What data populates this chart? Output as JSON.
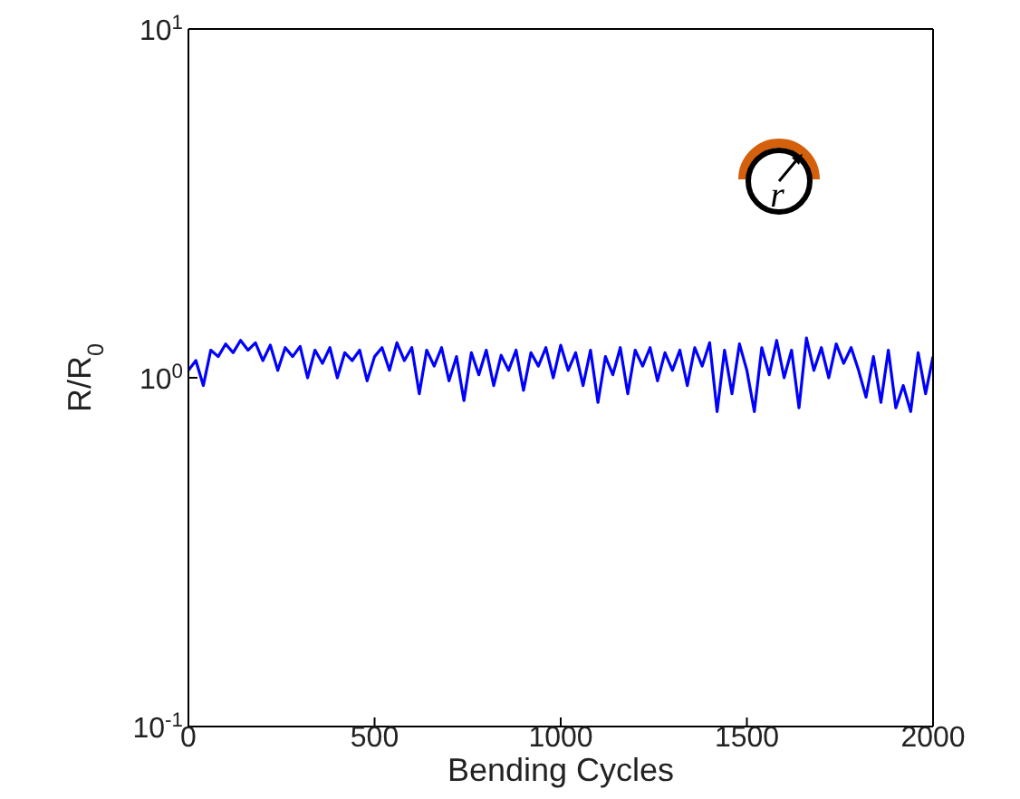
{
  "chart_data": {
    "type": "line",
    "xlabel": "Bending Cycles",
    "ylabel": "R/R$_{0}$",
    "log": "y",
    "xlim": [
      0,
      2000
    ],
    "xticks": [
      0,
      500,
      1000,
      1500,
      2000
    ],
    "ylim": [
      0.1,
      10
    ],
    "yticks": [
      {
        "value": 0.1,
        "label": "10$^{-1}$"
      },
      {
        "value": 1,
        "label": "10$^{0}$"
      },
      {
        "value": 10,
        "label": "10$^{1}$"
      }
    ],
    "marker": "none",
    "line_style": "solid",
    "annotations": [
      "r"
    ],
    "x": [
      0,
      20,
      40,
      60,
      80,
      100,
      120,
      140,
      160,
      180,
      200,
      220,
      240,
      260,
      280,
      300,
      320,
      340,
      360,
      380,
      400,
      420,
      440,
      460,
      480,
      500,
      520,
      540,
      560,
      580,
      600,
      620,
      640,
      660,
      680,
      700,
      720,
      740,
      760,
      780,
      800,
      820,
      840,
      860,
      880,
      900,
      920,
      940,
      960,
      980,
      1000,
      1020,
      1040,
      1060,
      1080,
      1100,
      1120,
      1140,
      1160,
      1180,
      1200,
      1220,
      1240,
      1260,
      1280,
      1300,
      1320,
      1340,
      1360,
      1380,
      1400,
      1420,
      1440,
      1460,
      1480,
      1500,
      1520,
      1540,
      1560,
      1580,
      1600,
      1620,
      1640,
      1660,
      1680,
      1700,
      1720,
      1740,
      1760,
      1780,
      1800,
      1820,
      1840,
      1860,
      1880,
      1900,
      1920,
      1940,
      1960,
      1980,
      2000
    ],
    "series": [
      {
        "color": "#0000ff",
        "values": [
          1.05,
          1.12,
          0.95,
          1.2,
          1.15,
          1.25,
          1.18,
          1.28,
          1.2,
          1.26,
          1.12,
          1.24,
          1.05,
          1.22,
          1.15,
          1.23,
          1.0,
          1.2,
          1.1,
          1.22,
          1.0,
          1.18,
          1.12,
          1.2,
          0.98,
          1.15,
          1.22,
          1.05,
          1.26,
          1.12,
          1.22,
          0.9,
          1.2,
          1.08,
          1.22,
          0.98,
          1.15,
          0.86,
          1.18,
          1.02,
          1.2,
          0.95,
          1.16,
          1.05,
          1.2,
          0.92,
          1.18,
          1.08,
          1.22,
          1.0,
          1.24,
          1.05,
          1.18,
          0.95,
          1.2,
          0.85,
          1.15,
          1.02,
          1.22,
          0.9,
          1.2,
          1.08,
          1.22,
          0.98,
          1.18,
          1.05,
          1.2,
          0.95,
          1.22,
          1.08,
          1.26,
          0.8,
          1.2,
          0.9,
          1.25,
          1.05,
          0.8,
          1.22,
          1.02,
          1.28,
          1.0,
          1.2,
          0.82,
          1.3,
          1.05,
          1.22,
          1.0,
          1.25,
          1.1,
          1.22,
          1.05,
          0.88,
          1.15,
          0.85,
          1.2,
          0.82,
          0.95,
          0.8,
          1.18,
          0.9,
          1.15
        ]
      }
    ]
  }
}
